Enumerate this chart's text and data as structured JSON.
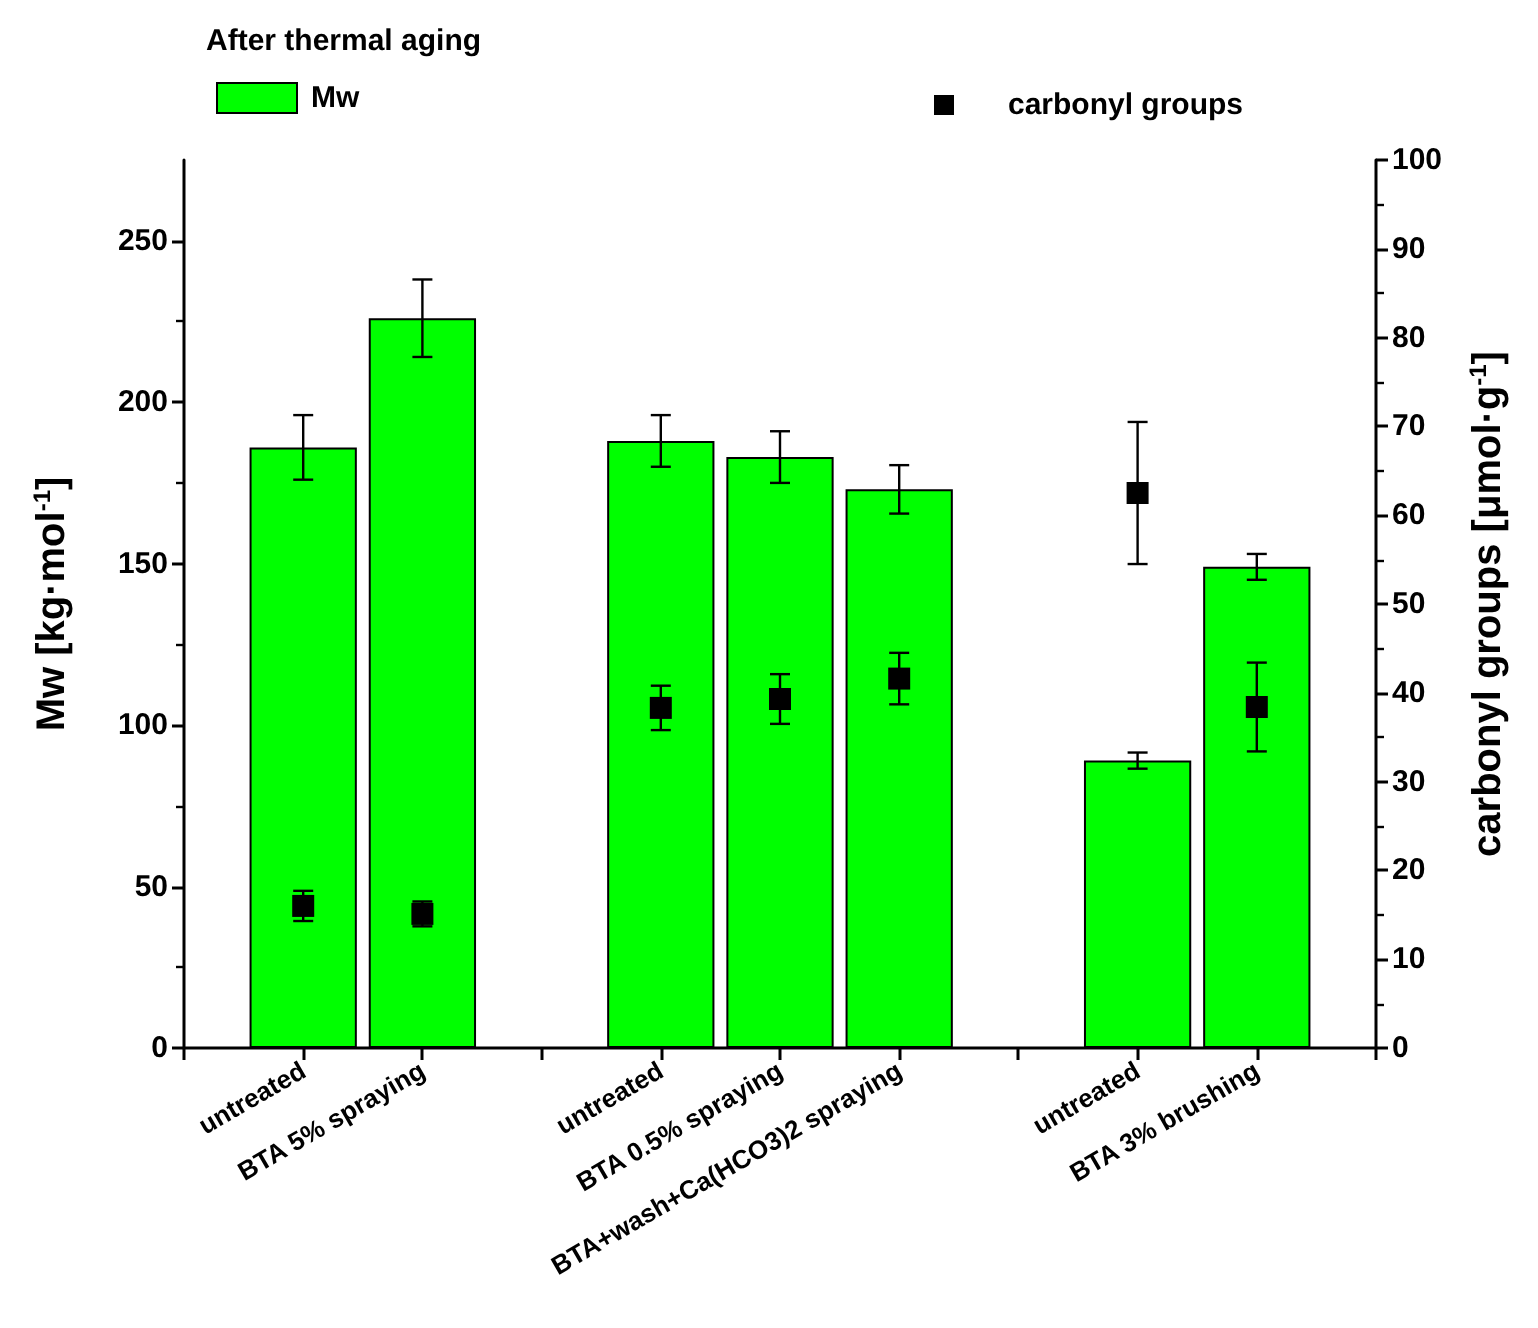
{
  "chart_data": {
    "type": "bar",
    "legend_title": "After thermal aging",
    "ylabel": "Mw [kg·mol$^{-1}$]",
    "y2label": "carbonyl groups [μmol·g$^{-1}$]",
    "categories": [
      null,
      "untreated",
      "BTA 5% spraying",
      null,
      "untreated",
      "BTA 0.5% spraying",
      "BTA+wash+Ca(HCO3)2 spraying",
      null,
      "untreated",
      "BTA 3% brushing",
      null
    ],
    "series": [
      {
        "name": "Mw",
        "color": "#00ff00",
        "values": [
          null,
          186,
          226,
          null,
          188,
          183,
          173,
          null,
          89,
          149,
          null
        ],
        "errors": [
          null,
          10,
          12,
          null,
          8,
          8,
          7.5,
          null,
          2.5,
          4,
          null
        ]
      },
      {
        "name": "carbonyl groups",
        "type": "scatter",
        "axis": "y2",
        "color": "#000000",
        "values": [
          null,
          16.0,
          15.1,
          null,
          38.3,
          39.3,
          41.6,
          null,
          62.5,
          38.4,
          null
        ],
        "errors": [
          null,
          1.7,
          1.4,
          null,
          2.5,
          2.8,
          2.9,
          null,
          8,
          5,
          null
        ]
      }
    ],
    "ylim": [
      0,
      275
    ],
    "yticks": [
      0,
      50,
      100,
      150,
      200,
      250
    ],
    "y2lim": [
      0,
      100
    ],
    "y2ticks": [
      0,
      10,
      20,
      30,
      40,
      50,
      60,
      70,
      80,
      90,
      100
    ],
    "marker": "square",
    "grid": false,
    "legend": "top"
  }
}
